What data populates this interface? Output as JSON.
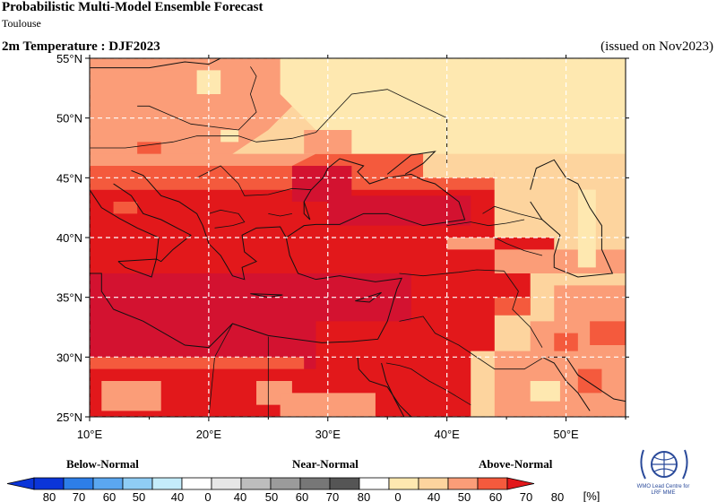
{
  "header": {
    "title": "Probabilistic Multi-Model Ensemble Forecast",
    "subtitle": "Toulouse",
    "variable": "2m Temperature : DJF2023",
    "issued": "(issued on Nov2023)"
  },
  "map": {
    "lat_labels": [
      "55°N",
      "50°N",
      "45°N",
      "40°N",
      "35°N",
      "30°N",
      "25°N"
    ],
    "lat_values": [
      55,
      50,
      45,
      40,
      35,
      30,
      25
    ],
    "lon_labels": [
      "10°E",
      "20°E",
      "30°E",
      "40°E",
      "50°E"
    ],
    "lon_values": [
      10,
      20,
      30,
      40,
      50
    ],
    "extent": {
      "lon": [
        10,
        55
      ],
      "lat": [
        25,
        55
      ]
    },
    "category_colors": {
      "A40": "#fee8b0",
      "A50": "#fdd49e",
      "A60": "#fb9d78",
      "A70": "#f45a3d",
      "A80": "#e2181b",
      "A80b": "#d31230"
    },
    "background_category": "A50"
  },
  "legend": {
    "categories": {
      "below": "Below-Normal",
      "near": "Near-Normal",
      "above": "Above-Normal"
    },
    "below_ticks": [
      "80",
      "70",
      "60",
      "50",
      "40"
    ],
    "near_ticks": [
      "0",
      "40",
      "50",
      "60",
      "70",
      "80"
    ],
    "above_ticks": [
      "0",
      "40",
      "50",
      "60",
      "70",
      "80"
    ],
    "unit": "[%]",
    "below_colors": [
      "#0b35d8",
      "#2d7ee8",
      "#5ba7f0",
      "#8fcdf5",
      "#c4ecfb"
    ],
    "near_colors": [
      "#ffffff",
      "#e6e6e6",
      "#bdbdbd",
      "#9b9b9b",
      "#777777",
      "#555555"
    ],
    "above_colors": [
      "#ffffff",
      "#fee8b0",
      "#fdd49e",
      "#fb9d78",
      "#f45a3d",
      "#e2181b"
    ]
  },
  "logo": {
    "text_line1": "WMO Lead Centre for",
    "text_line2": "LRF MME"
  }
}
